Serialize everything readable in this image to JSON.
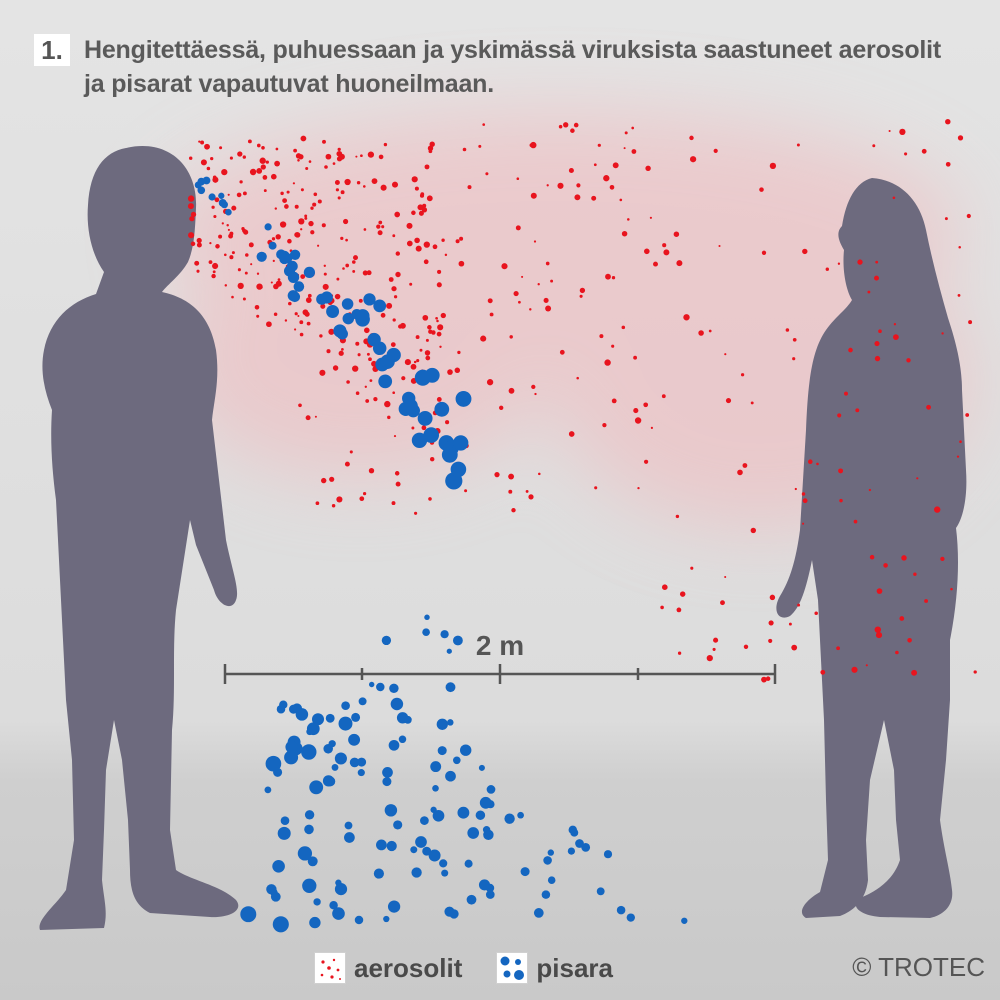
{
  "step_number": "1.",
  "headline": "Hengitettäessä, puhuessaan ja yskimässä viruksista saastuneet aerosolit ja pisarat vapautuvat huoneilmaan.",
  "distance_label": "2 m",
  "legend": {
    "aerosol_label": "aerosolit",
    "droplet_label": "pisara"
  },
  "copyright": "© TROTEC",
  "colors": {
    "silhouette": "#6d6a7e",
    "aerosol": "#e8141e",
    "droplet": "#1466c0",
    "cloud": "#f2b8bc",
    "text": "#555555"
  }
}
